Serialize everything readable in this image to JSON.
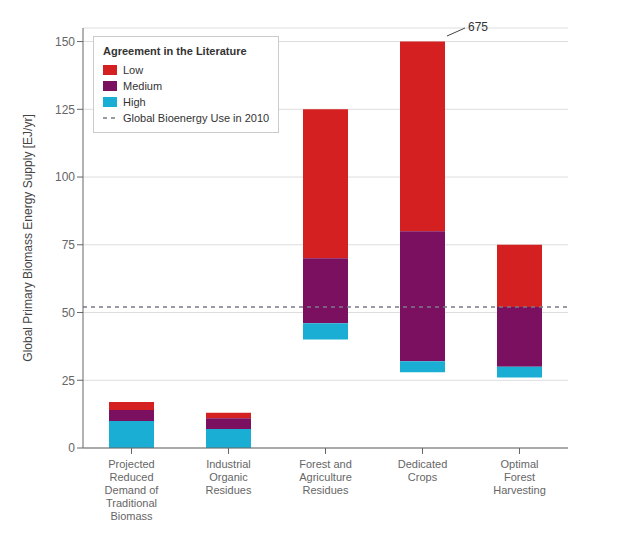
{
  "chart_data": {
    "type": "bar",
    "categories": [
      "Projected\nReduced\nDemand of\nTraditional\nBiomass",
      "Industrial\nOrganic\nResidues",
      "Forest and\nAgriculture\nResidues",
      "Dedicated\nCrops",
      "Optimal\nForest\nHarvesting"
    ],
    "series": [
      {
        "name": "Low",
        "color": "#d42020",
        "values": [
          [
            14,
            17
          ],
          [
            11,
            13
          ],
          [
            70,
            125
          ],
          [
            80,
            150
          ],
          [
            52,
            75
          ]
        ]
      },
      {
        "name": "Medium",
        "color": "#7b1060",
        "values": [
          [
            10,
            14
          ],
          [
            7,
            11
          ],
          [
            46,
            70
          ],
          [
            32,
            80
          ],
          [
            30,
            52
          ]
        ]
      },
      {
        "name": "High",
        "color": "#1aaed4",
        "values": [
          [
            0,
            10
          ],
          [
            0,
            7
          ],
          [
            40,
            46
          ],
          [
            28,
            32
          ],
          [
            26,
            30
          ]
        ]
      }
    ],
    "hlines": [
      {
        "name": "Global Bioenergy Use in 2010",
        "y": 52,
        "color": "#7a7a8a",
        "line_style": "dashed"
      }
    ],
    "annotations": [
      {
        "text": "675",
        "category": "Dedicated\nCrops"
      }
    ],
    "ylabel": "Global Primary Biomass Energy Supply [EJ/yr]",
    "ylim": [
      0,
      155
    ],
    "yticks": [
      0,
      25,
      50,
      75,
      100,
      125,
      150
    ],
    "grid": true,
    "legend": "upper left",
    "legend_title": "Agreement in the Literature"
  }
}
